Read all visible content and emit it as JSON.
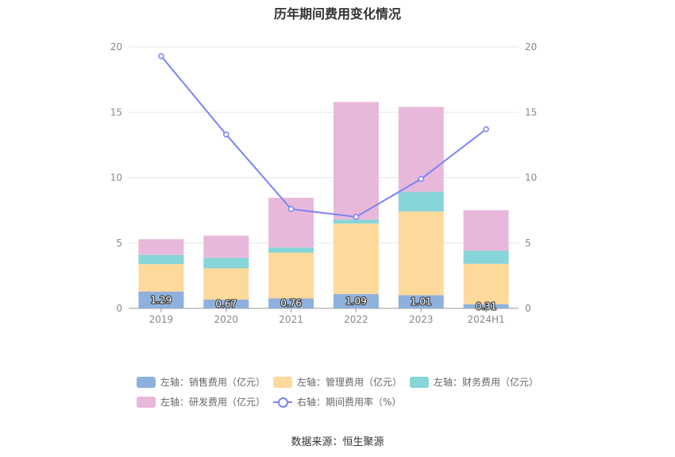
{
  "title": "历年期间费用变化情况",
  "source_text": "数据来源：恒生聚源",
  "colors": {
    "sales": "#8eb0dc",
    "admin": "#fdd99b",
    "finance": "#86d5d8",
    "rnd": "#e8b8da",
    "rate": "#7b83f5"
  },
  "chart_data": {
    "type": "bar",
    "stacked": true,
    "categories": [
      "2019",
      "2020",
      "2021",
      "2022",
      "2023",
      "2024H1"
    ],
    "left_axis": {
      "ylim": [
        0,
        20
      ],
      "ticks": [
        0,
        5,
        10,
        15,
        20
      ]
    },
    "right_axis": {
      "ylim": [
        0,
        20
      ],
      "ticks": [
        0,
        5,
        10,
        15,
        20
      ]
    },
    "series": [
      {
        "key": "sales",
        "name": "左轴：销售费用（亿元）",
        "type": "bar",
        "axis": "left",
        "values": [
          1.29,
          0.67,
          0.76,
          1.09,
          1.01,
          0.31
        ],
        "show_labels": true
      },
      {
        "key": "admin",
        "name": "左轴：管理费用（亿元）",
        "type": "bar",
        "axis": "left",
        "values": [
          2.1,
          2.4,
          3.5,
          5.4,
          6.4,
          3.1
        ]
      },
      {
        "key": "finance",
        "name": "左轴：财务费用（亿元）",
        "type": "bar",
        "axis": "left",
        "values": [
          0.7,
          0.8,
          0.4,
          0.3,
          1.5,
          1.0
        ]
      },
      {
        "key": "rnd",
        "name": "左轴：研发费用（亿元）",
        "type": "bar",
        "axis": "left",
        "values": [
          1.2,
          1.7,
          3.8,
          9.0,
          6.5,
          3.1
        ]
      },
      {
        "key": "rate",
        "name": "右轴：期间费用率（%）",
        "type": "line",
        "axis": "right",
        "values": [
          19.3,
          13.3,
          7.6,
          7.0,
          9.9,
          13.7
        ]
      }
    ],
    "legend_position": "bottom",
    "grid": true
  }
}
